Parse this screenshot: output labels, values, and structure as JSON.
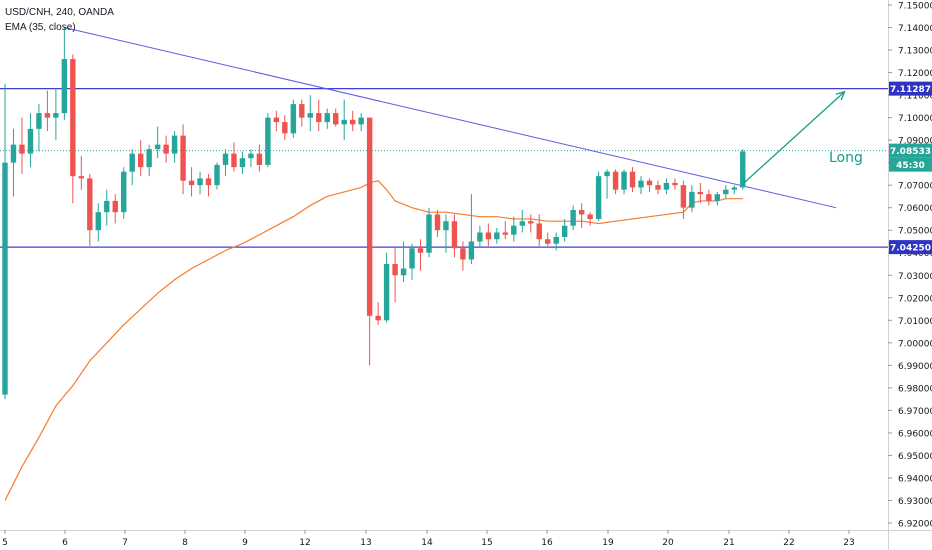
{
  "header": {
    "symbol_line": "USD/CNH, 240, OANDA",
    "indicator_line": "EMA (35, close)"
  },
  "annotation": {
    "long_label": "Long"
  },
  "price_badges": {
    "resistance": "7.11287",
    "current": "7.08533",
    "countdown": "45:30",
    "support": "7.04250"
  },
  "colors": {
    "up": "#26a69a",
    "down": "#ef5350",
    "ema": "#f57c2e",
    "lines": "#3f3fd6",
    "arrow": "#129e88",
    "current_price": "#26a69a"
  },
  "chart_data": {
    "type": "candlestick",
    "instrument": "USD/CNH",
    "timeframe": "240",
    "ylim": [
      6.92,
      7.15
    ],
    "x_tick_labels": [
      "5",
      "6",
      "7",
      "8",
      "9",
      "12",
      "13",
      "14",
      "15",
      "16",
      "19",
      "20",
      "21",
      "22",
      "23"
    ],
    "y_tick_labels": [
      "7.15000",
      "7.14000",
      "7.13000",
      "7.12000",
      "7.11000",
      "7.10000",
      "7.09000",
      "7.08000",
      "7.07000",
      "7.06000",
      "7.05000",
      "7.04000",
      "7.03000",
      "7.02000",
      "7.01000",
      "7.00000",
      "6.99000",
      "6.98000",
      "6.97000",
      "6.96000",
      "6.95000",
      "6.94000",
      "6.93000",
      "6.92000"
    ],
    "candles": [
      {
        "o": 6.977,
        "h": 7.115,
        "l": 6.975,
        "c": 7.08
      },
      {
        "o": 7.08,
        "h": 7.095,
        "l": 7.065,
        "c": 7.088
      },
      {
        "o": 7.088,
        "h": 7.1,
        "l": 7.075,
        "c": 7.084
      },
      {
        "o": 7.084,
        "h": 7.102,
        "l": 7.078,
        "c": 7.095
      },
      {
        "o": 7.095,
        "h": 7.106,
        "l": 7.085,
        "c": 7.102
      },
      {
        "o": 7.102,
        "h": 7.112,
        "l": 7.094,
        "c": 7.1
      },
      {
        "o": 7.1,
        "h": 7.113,
        "l": 7.09,
        "c": 7.102
      },
      {
        "o": 7.102,
        "h": 7.14,
        "l": 7.099,
        "c": 7.126
      },
      {
        "o": 7.126,
        "h": 7.128,
        "l": 7.062,
        "c": 7.074
      },
      {
        "o": 7.074,
        "h": 7.083,
        "l": 7.068,
        "c": 7.073
      },
      {
        "o": 7.073,
        "h": 7.075,
        "l": 7.043,
        "c": 7.05
      },
      {
        "o": 7.05,
        "h": 7.062,
        "l": 7.045,
        "c": 7.058
      },
      {
        "o": 7.058,
        "h": 7.068,
        "l": 7.052,
        "c": 7.063
      },
      {
        "o": 7.063,
        "h": 7.066,
        "l": 7.053,
        "c": 7.058
      },
      {
        "o": 7.058,
        "h": 7.078,
        "l": 7.055,
        "c": 7.076
      },
      {
        "o": 7.076,
        "h": 7.086,
        "l": 7.07,
        "c": 7.084
      },
      {
        "o": 7.084,
        "h": 7.09,
        "l": 7.074,
        "c": 7.078
      },
      {
        "o": 7.078,
        "h": 7.088,
        "l": 7.074,
        "c": 7.086
      },
      {
        "o": 7.086,
        "h": 7.096,
        "l": 7.082,
        "c": 7.088
      },
      {
        "o": 7.088,
        "h": 7.092,
        "l": 7.08,
        "c": 7.084
      },
      {
        "o": 7.084,
        "h": 7.094,
        "l": 7.08,
        "c": 7.092
      },
      {
        "o": 7.092,
        "h": 7.097,
        "l": 7.066,
        "c": 7.072
      },
      {
        "o": 7.072,
        "h": 7.078,
        "l": 7.065,
        "c": 7.07
      },
      {
        "o": 7.07,
        "h": 7.076,
        "l": 7.066,
        "c": 7.073
      },
      {
        "o": 7.073,
        "h": 7.075,
        "l": 7.065,
        "c": 7.07
      },
      {
        "o": 7.07,
        "h": 7.08,
        "l": 7.068,
        "c": 7.079
      },
      {
        "o": 7.079,
        "h": 7.086,
        "l": 7.074,
        "c": 7.084
      },
      {
        "o": 7.084,
        "h": 7.089,
        "l": 7.076,
        "c": 7.078
      },
      {
        "o": 7.078,
        "h": 7.085,
        "l": 7.075,
        "c": 7.082
      },
      {
        "o": 7.082,
        "h": 7.086,
        "l": 7.078,
        "c": 7.084
      },
      {
        "o": 7.084,
        "h": 7.088,
        "l": 7.076,
        "c": 7.079
      },
      {
        "o": 7.079,
        "h": 7.102,
        "l": 7.078,
        "c": 7.1
      },
      {
        "o": 7.1,
        "h": 7.103,
        "l": 7.094,
        "c": 7.098
      },
      {
        "o": 7.098,
        "h": 7.101,
        "l": 7.09,
        "c": 7.093
      },
      {
        "o": 7.093,
        "h": 7.108,
        "l": 7.091,
        "c": 7.106
      },
      {
        "o": 7.106,
        "h": 7.108,
        "l": 7.096,
        "c": 7.1
      },
      {
        "o": 7.1,
        "h": 7.11,
        "l": 7.094,
        "c": 7.102
      },
      {
        "o": 7.102,
        "h": 7.108,
        "l": 7.094,
        "c": 7.098
      },
      {
        "o": 7.098,
        "h": 7.104,
        "l": 7.095,
        "c": 7.102
      },
      {
        "o": 7.102,
        "h": 7.104,
        "l": 7.096,
        "c": 7.097
      },
      {
        "o": 7.097,
        "h": 7.108,
        "l": 7.09,
        "c": 7.099
      },
      {
        "o": 7.099,
        "h": 7.103,
        "l": 7.094,
        "c": 7.097
      },
      {
        "o": 7.097,
        "h": 7.102,
        "l": 7.094,
        "c": 7.1
      },
      {
        "o": 7.1,
        "h": 7.1,
        "l": 6.99,
        "c": 7.012
      },
      {
        "o": 7.012,
        "h": 7.018,
        "l": 7.008,
        "c": 7.01
      },
      {
        "o": 7.01,
        "h": 7.04,
        "l": 7.009,
        "c": 7.035
      },
      {
        "o": 7.035,
        "h": 7.042,
        "l": 7.018,
        "c": 7.03
      },
      {
        "o": 7.03,
        "h": 7.045,
        "l": 7.027,
        "c": 7.033
      },
      {
        "o": 7.033,
        "h": 7.044,
        "l": 7.028,
        "c": 7.042
      },
      {
        "o": 7.042,
        "h": 7.046,
        "l": 7.032,
        "c": 7.04
      },
      {
        "o": 7.04,
        "h": 7.06,
        "l": 7.038,
        "c": 7.057
      },
      {
        "o": 7.057,
        "h": 7.059,
        "l": 7.047,
        "c": 7.05
      },
      {
        "o": 7.05,
        "h": 7.057,
        "l": 7.04,
        "c": 7.054
      },
      {
        "o": 7.054,
        "h": 7.057,
        "l": 7.038,
        "c": 7.042
      },
      {
        "o": 7.042,
        "h": 7.045,
        "l": 7.032,
        "c": 7.037
      },
      {
        "o": 7.037,
        "h": 7.066,
        "l": 7.035,
        "c": 7.045
      },
      {
        "o": 7.045,
        "h": 7.052,
        "l": 7.042,
        "c": 7.049
      },
      {
        "o": 7.049,
        "h": 7.053,
        "l": 7.043,
        "c": 7.046
      },
      {
        "o": 7.046,
        "h": 7.051,
        "l": 7.044,
        "c": 7.049
      },
      {
        "o": 7.049,
        "h": 7.054,
        "l": 7.046,
        "c": 7.048
      },
      {
        "o": 7.048,
        "h": 7.056,
        "l": 7.045,
        "c": 7.052
      },
      {
        "o": 7.052,
        "h": 7.059,
        "l": 7.049,
        "c": 7.054
      },
      {
        "o": 7.054,
        "h": 7.057,
        "l": 7.049,
        "c": 7.053
      },
      {
        "o": 7.053,
        "h": 7.057,
        "l": 7.043,
        "c": 7.046
      },
      {
        "o": 7.046,
        "h": 7.049,
        "l": 7.043,
        "c": 7.044
      },
      {
        "o": 7.044,
        "h": 7.049,
        "l": 7.041,
        "c": 7.047
      },
      {
        "o": 7.047,
        "h": 7.055,
        "l": 7.045,
        "c": 7.052
      },
      {
        "o": 7.052,
        "h": 7.061,
        "l": 7.05,
        "c": 7.059
      },
      {
        "o": 7.059,
        "h": 7.062,
        "l": 7.051,
        "c": 7.057
      },
      {
        "o": 7.057,
        "h": 7.058,
        "l": 7.052,
        "c": 7.055
      },
      {
        "o": 7.055,
        "h": 7.076,
        "l": 7.054,
        "c": 7.074
      },
      {
        "o": 7.074,
        "h": 7.077,
        "l": 7.064,
        "c": 7.076
      },
      {
        "o": 7.076,
        "h": 7.077,
        "l": 7.066,
        "c": 7.068
      },
      {
        "o": 7.068,
        "h": 7.077,
        "l": 7.066,
        "c": 7.076
      },
      {
        "o": 7.076,
        "h": 7.078,
        "l": 7.067,
        "c": 7.069
      },
      {
        "o": 7.069,
        "h": 7.074,
        "l": 7.066,
        "c": 7.072
      },
      {
        "o": 7.072,
        "h": 7.073,
        "l": 7.067,
        "c": 7.07
      },
      {
        "o": 7.07,
        "h": 7.072,
        "l": 7.066,
        "c": 7.068
      },
      {
        "o": 7.068,
        "h": 7.073,
        "l": 7.066,
        "c": 7.071
      },
      {
        "o": 7.071,
        "h": 7.073,
        "l": 7.068,
        "c": 7.07
      },
      {
        "o": 7.07,
        "h": 7.072,
        "l": 7.055,
        "c": 7.06
      },
      {
        "o": 7.06,
        "h": 7.07,
        "l": 7.058,
        "c": 7.067
      },
      {
        "o": 7.067,
        "h": 7.071,
        "l": 7.062,
        "c": 7.066
      },
      {
        "o": 7.066,
        "h": 7.068,
        "l": 7.061,
        "c": 7.063
      },
      {
        "o": 7.063,
        "h": 7.067,
        "l": 7.061,
        "c": 7.066
      },
      {
        "o": 7.066,
        "h": 7.07,
        "l": 7.064,
        "c": 7.068
      },
      {
        "o": 7.068,
        "h": 7.07,
        "l": 7.066,
        "c": 7.069
      },
      {
        "o": 7.069,
        "h": 7.086,
        "l": 7.068,
        "c": 7.085
      }
    ],
    "ema_35": [
      6.93,
      6.945,
      6.958,
      6.972,
      6.981,
      6.992,
      7.0,
      7.008,
      7.015,
      7.022,
      7.028,
      7.033,
      7.037,
      7.041,
      7.044,
      7.048,
      7.052,
      7.056,
      7.061,
      7.065,
      7.067,
      7.069,
      7.071,
      7.072,
      7.068,
      7.063,
      7.06,
      7.058,
      7.058,
      7.057,
      7.056,
      7.056,
      7.055,
      7.055,
      7.054,
      7.054,
      7.054,
      7.053,
      7.054,
      7.055,
      7.056,
      7.057,
      7.058,
      7.062,
      7.063,
      7.063,
      7.063,
      7.064,
      7.064,
      7.064
    ],
    "ema_start_index": 0,
    "ema_indices": [
      0,
      2,
      4,
      6,
      8,
      10,
      12,
      14,
      16,
      18,
      20,
      22,
      24,
      26,
      28,
      30,
      32,
      34,
      36,
      38,
      40,
      42,
      43,
      44,
      45,
      46,
      48,
      50,
      52,
      54,
      56,
      58,
      60,
      62,
      64,
      66,
      68,
      70,
      72,
      74,
      76,
      78,
      80,
      81,
      82,
      83,
      84,
      85,
      86,
      87
    ],
    "horizontal_lines": [
      7.11287,
      7.0425
    ],
    "current_price": 7.08533,
    "trendline": {
      "from": {
        "index": 7,
        "price": 7.14
      },
      "to": {
        "index": 98,
        "price": 7.06
      }
    },
    "projection_arrow": {
      "from": {
        "index": 87,
        "price": 7.0705
      },
      "to": {
        "index": 99,
        "price": 7.1115
      }
    }
  }
}
